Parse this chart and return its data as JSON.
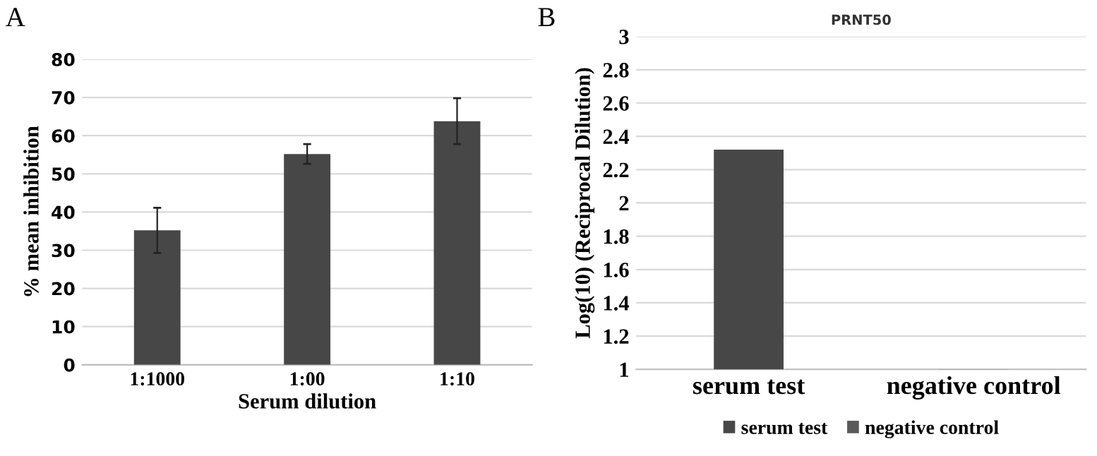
{
  "chart_data": [
    {
      "type": "bar",
      "annotations": [
        "A"
      ],
      "xlabel": "Serum dilution",
      "ylabel": "% mean inhibition",
      "categories": [
        "1:1000",
        "1:00",
        "1:10"
      ],
      "series": [
        {
          "color": "#474747",
          "values": [
            35.2,
            55.2,
            63.8
          ],
          "errors": [
            5.9,
            2.6,
            6.0
          ]
        }
      ],
      "ylim": [
        0,
        80
      ],
      "yticks": [
        0,
        10,
        20,
        30,
        40,
        50,
        60,
        70,
        80
      ],
      "grid": "y",
      "legend": false
    },
    {
      "type": "bar",
      "annotations": [
        "B"
      ],
      "title": "PRNT50",
      "ylabel": "Log(10) (Reciprocal Dilution)",
      "categories": [
        "serum test",
        "negative control"
      ],
      "series": [
        {
          "name": "serum test",
          "color": "#474747",
          "values": [
            2.32,
            null
          ]
        },
        {
          "name": "negative control",
          "color": "#595959",
          "values": [
            null,
            1.0
          ]
        }
      ],
      "ylim": [
        1,
        3
      ],
      "yticks": [
        1,
        1.2,
        1.4,
        1.6,
        1.8,
        2,
        2.2,
        2.4,
        2.6,
        2.8,
        3
      ],
      "grid": "y",
      "legend": "bottom"
    }
  ]
}
